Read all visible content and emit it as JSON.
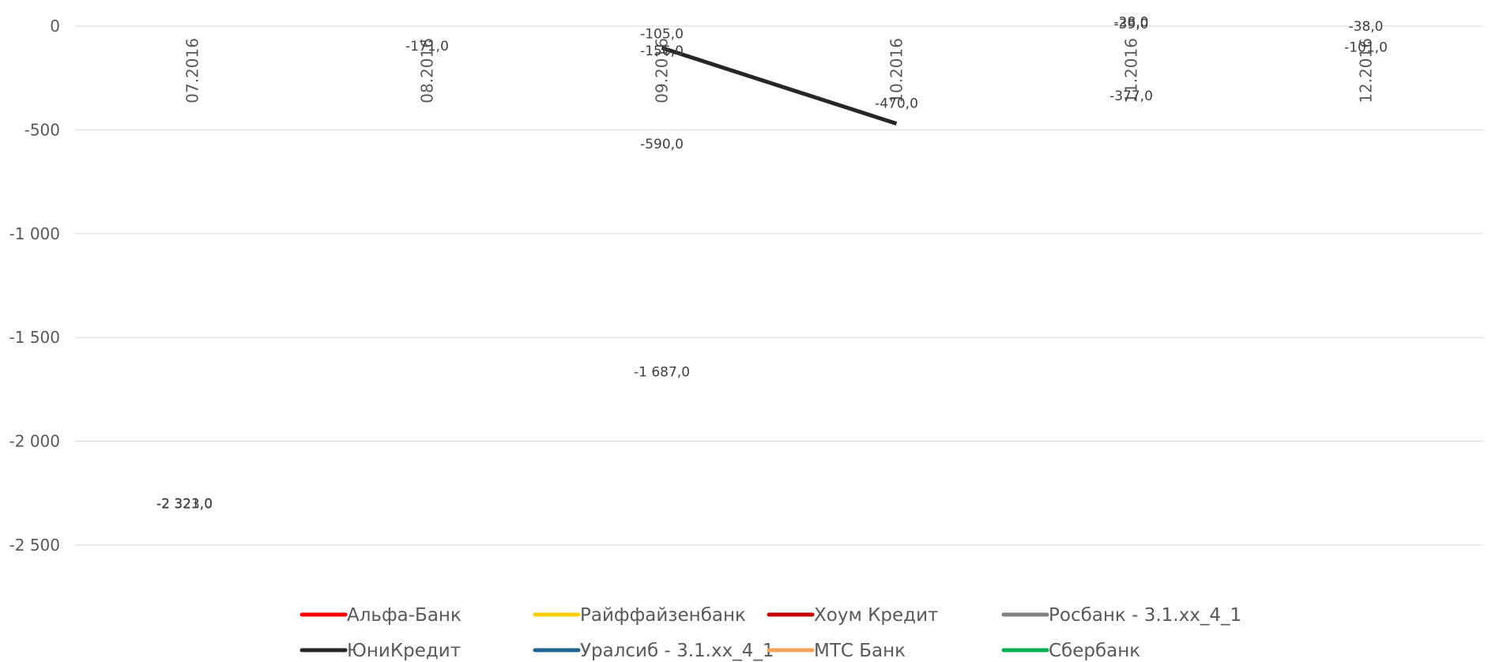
{
  "chart_data": {
    "type": "line",
    "categories": [
      "07.2016",
      "08.2016",
      "09.2016",
      "10.2016",
      "11.2016",
      "12.2016"
    ],
    "y_ticks": [
      "0",
      "-500",
      "-1 000",
      "-1 500",
      "-2 000",
      "-2 500"
    ],
    "ylim": [
      -2800,
      0
    ],
    "grid": true,
    "legend_position": "bottom",
    "series": [
      {
        "name": "Альфа-Банк",
        "color": "#ff0000",
        "values": [
          null,
          null,
          null,
          null,
          null,
          null
        ]
      },
      {
        "name": "Райффайзенбанк",
        "color": "#ffcc00",
        "values": [
          null,
          null,
          null,
          null,
          null,
          null
        ]
      },
      {
        "name": "Хоум Кредит",
        "color": "#c00000",
        "values": [
          null,
          null,
          null,
          null,
          null,
          null
        ]
      },
      {
        "name": "Росбанк - 3.1.xx_4_1",
        "color": "#808080",
        "values": [
          null,
          null,
          null,
          null,
          null,
          null
        ]
      },
      {
        "name": "ЮниКредит",
        "color": "#262626",
        "values": [
          null,
          null,
          -105,
          -470,
          null,
          null
        ]
      },
      {
        "name": "Уралсиб - 3.1.xx_4_1",
        "color": "#1f6391",
        "values": [
          null,
          null,
          null,
          null,
          null,
          null
        ]
      },
      {
        "name": "МТС Банк",
        "color": "#f5a35c",
        "values": [
          null,
          null,
          null,
          null,
          null,
          null
        ]
      },
      {
        "name": "Сбербанк",
        "color": "#00b050",
        "values": [
          null,
          null,
          null,
          null,
          null,
          null
        ]
      }
    ],
    "data_labels": [
      {
        "category": "07.2016",
        "value": -2321,
        "text": "-2 321,0"
      },
      {
        "category": "07.2016",
        "value": -2323,
        "text": "-2 323,0"
      },
      {
        "category": "08.2016",
        "value": -171,
        "text": "-171,0"
      },
      {
        "category": "09.2016",
        "value": -105,
        "text": "-105,0"
      },
      {
        "category": "09.2016",
        "value": -156,
        "text": "-156,0"
      },
      {
        "category": "09.2016",
        "value": -590,
        "text": "-590,0"
      },
      {
        "category": "09.2016",
        "value": -1687,
        "text": "-1 687,0"
      },
      {
        "category": "10.2016",
        "value": -470,
        "text": "-470,0"
      },
      {
        "category": "11.2016",
        "value": -28,
        "text": "-28,0"
      },
      {
        "category": "11.2016",
        "value": -39,
        "text": "-39,0"
      },
      {
        "category": "11.2016",
        "value": -377,
        "text": "-377,0"
      },
      {
        "category": "12.2016",
        "value": -38,
        "text": "-38,0"
      },
      {
        "category": "12.2016",
        "value": -101,
        "text": "-101,0"
      }
    ]
  }
}
